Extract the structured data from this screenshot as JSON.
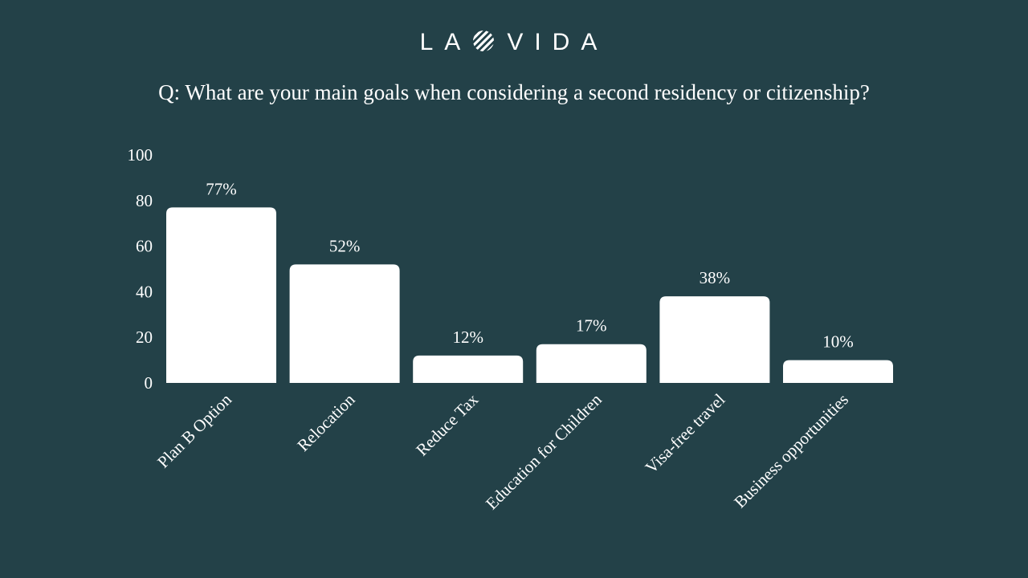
{
  "brand": {
    "left": "LA",
    "right": "VIDA"
  },
  "chart_data": {
    "type": "bar",
    "title": "Q: What are your main goals when considering a second residency or citizenship?",
    "categories": [
      "Plan B Option",
      "Relocation",
      "Reduce Tax",
      "Education for Children",
      "Visa-free travel",
      "Business opportunities"
    ],
    "values": [
      77,
      52,
      12,
      17,
      38,
      10
    ],
    "data_labels": [
      "77%",
      "52%",
      "12%",
      "17%",
      "38%",
      "10%"
    ],
    "ylim": [
      0,
      100
    ],
    "yticks": [
      0,
      20,
      40,
      60,
      80,
      100
    ],
    "xlabel": "",
    "ylabel": "",
    "grid": false,
    "colors": {
      "background": "#234148",
      "bar": "#ffffff",
      "text": "#ffffff"
    }
  }
}
